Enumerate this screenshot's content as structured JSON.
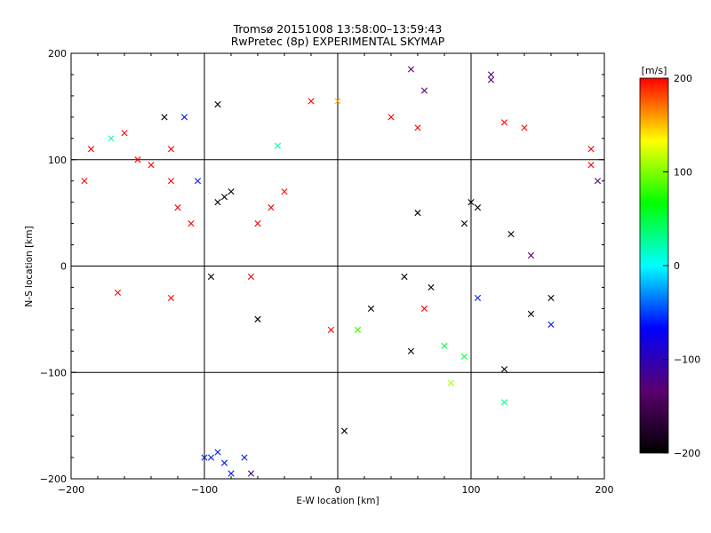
{
  "chart_data": {
    "type": "scatter",
    "title": "Tromsø 20151008 13:58:00–13:59:43",
    "subtitle": "RwPretec (8p) EXPERIMENTAL SKYMAP",
    "xlabel": "E-W location [km]",
    "ylabel": "N-S location [km]",
    "xlim": [
      -200,
      200
    ],
    "ylim": [
      -200,
      200
    ],
    "x_ticks": [
      "−200",
      "−100",
      "0",
      "100",
      "200"
    ],
    "y_ticks": [
      "−200",
      "−100",
      "0",
      "100",
      "200"
    ],
    "grid": "lines at -100, 0, 100 on both axes",
    "colorbar": {
      "label": "[m/s]",
      "range": [
        -200,
        200
      ],
      "ticks": [
        "200",
        "100",
        "0",
        "−100",
        "−200"
      ],
      "colormap": [
        "#000000",
        "#5a006e",
        "#0000ff",
        "#00ffff",
        "#00ff00",
        "#ffff00",
        "#ff0000"
      ]
    },
    "markers": {
      "small": "dot",
      "large": "x"
    },
    "series": [
      {
        "values": [
          {
            "x": -80,
            "y": 70,
            "v": -200,
            "m": "x"
          },
          {
            "x": -85,
            "y": 65,
            "v": -200,
            "m": "x"
          },
          {
            "x": -90,
            "y": 60,
            "v": -200,
            "m": "x"
          },
          {
            "x": -130,
            "y": 140,
            "v": -200,
            "m": "x"
          },
          {
            "x": -90,
            "y": 152,
            "v": -200,
            "m": "x"
          },
          {
            "x": 5,
            "y": -155,
            "v": -200,
            "m": "x"
          },
          {
            "x": 100,
            "y": 60,
            "v": -200,
            "m": "x"
          },
          {
            "x": 105,
            "y": 55,
            "v": -200,
            "m": "x"
          },
          {
            "x": 95,
            "y": 40,
            "v": -200,
            "m": "x"
          },
          {
            "x": 70,
            "y": -20,
            "v": -200,
            "m": "x"
          },
          {
            "x": 50,
            "y": -10,
            "v": -200,
            "m": "x"
          },
          {
            "x": 25,
            "y": -40,
            "v": -200,
            "m": "x"
          },
          {
            "x": 55,
            "y": -80,
            "v": -200,
            "m": "x"
          },
          {
            "x": 125,
            "y": -97,
            "v": -200,
            "m": "x"
          },
          {
            "x": 145,
            "y": -45,
            "v": -200,
            "m": "x"
          },
          {
            "x": -60,
            "y": -50,
            "v": -200,
            "m": "x"
          },
          {
            "x": -95,
            "y": -10,
            "v": -200,
            "m": "x"
          },
          {
            "x": 160,
            "y": -30,
            "v": -200,
            "m": "x"
          },
          {
            "x": 130,
            "y": 30,
            "v": -200,
            "m": "x"
          },
          {
            "x": 60,
            "y": 50,
            "v": -200,
            "m": "x"
          },
          {
            "x": 115,
            "y": 175,
            "v": -130,
            "m": "x"
          },
          {
            "x": 115,
            "y": 180,
            "v": -130,
            "m": "x"
          },
          {
            "x": 195,
            "y": 80,
            "v": -130,
            "m": "x"
          },
          {
            "x": 55,
            "y": 185,
            "v": -130,
            "m": "x"
          },
          {
            "x": 65,
            "y": 165,
            "v": -130,
            "m": "x"
          },
          {
            "x": 145,
            "y": 10,
            "v": -130,
            "m": "x"
          },
          {
            "x": -65,
            "y": -195,
            "v": -120,
            "m": "x"
          },
          {
            "x": -115,
            "y": 140,
            "v": -60,
            "m": "x"
          },
          {
            "x": -85,
            "y": -185,
            "v": -60,
            "m": "x"
          },
          {
            "x": -80,
            "y": -195,
            "v": -60,
            "m": "x"
          },
          {
            "x": -90,
            "y": -175,
            "v": -60,
            "m": "x"
          },
          {
            "x": -95,
            "y": -180,
            "v": -60,
            "m": "x"
          },
          {
            "x": -100,
            "y": -180,
            "v": -60,
            "m": "x"
          },
          {
            "x": -70,
            "y": -180,
            "v": -60,
            "m": "x"
          },
          {
            "x": 160,
            "y": -55,
            "v": -60,
            "m": "x"
          },
          {
            "x": 105,
            "y": -30,
            "v": -60,
            "m": "x"
          },
          {
            "x": -105,
            "y": 80,
            "v": -60,
            "m": "x"
          },
          {
            "x": -170,
            "y": 120,
            "v": 20,
            "m": "x"
          },
          {
            "x": -45,
            "y": 113,
            "v": 20,
            "m": "x"
          },
          {
            "x": 125,
            "y": -128,
            "v": 30,
            "m": "x"
          },
          {
            "x": 80,
            "y": -75,
            "v": 50,
            "m": "x"
          },
          {
            "x": 95,
            "y": -85,
            "v": 50,
            "m": "x"
          },
          {
            "x": 15,
            "y": -60,
            "v": 80,
            "m": "x"
          },
          {
            "x": 85,
            "y": -110,
            "v": 110,
            "m": "x"
          },
          {
            "x": 0,
            "y": 155,
            "v": 150,
            "m": "x"
          },
          {
            "x": -185,
            "y": 110,
            "v": 200,
            "m": "x"
          },
          {
            "x": -160,
            "y": 125,
            "v": 200,
            "m": "x"
          },
          {
            "x": -150,
            "y": 100,
            "v": 200,
            "m": "x"
          },
          {
            "x": -140,
            "y": 95,
            "v": 200,
            "m": "x"
          },
          {
            "x": -125,
            "y": 80,
            "v": 200,
            "m": "x"
          },
          {
            "x": -120,
            "y": 55,
            "v": 200,
            "m": "x"
          },
          {
            "x": -110,
            "y": 40,
            "v": 200,
            "m": "x"
          },
          {
            "x": -125,
            "y": 110,
            "v": 200,
            "m": "x"
          },
          {
            "x": -190,
            "y": 80,
            "v": 200,
            "m": "x"
          },
          {
            "x": -125,
            "y": -30,
            "v": 200,
            "m": "x"
          },
          {
            "x": -165,
            "y": -25,
            "v": 200,
            "m": "x"
          },
          {
            "x": -60,
            "y": 40,
            "v": 200,
            "m": "x"
          },
          {
            "x": -40,
            "y": 70,
            "v": 200,
            "m": "x"
          },
          {
            "x": -20,
            "y": 155,
            "v": 200,
            "m": "x"
          },
          {
            "x": 40,
            "y": 140,
            "v": 200,
            "m": "x"
          },
          {
            "x": 60,
            "y": 130,
            "v": 200,
            "m": "x"
          },
          {
            "x": 125,
            "y": 135,
            "v": 200,
            "m": "x"
          },
          {
            "x": 140,
            "y": 130,
            "v": 200,
            "m": "x"
          },
          {
            "x": 190,
            "y": 95,
            "v": 200,
            "m": "x"
          },
          {
            "x": 190,
            "y": 110,
            "v": 200,
            "m": "x"
          },
          {
            "x": -65,
            "y": -10,
            "v": 200,
            "m": "x"
          },
          {
            "x": -5,
            "y": -60,
            "v": 200,
            "m": "x"
          },
          {
            "x": 65,
            "y": -40,
            "v": 200,
            "m": "x"
          },
          {
            "x": -50,
            "y": 55,
            "v": 200,
            "m": "x"
          }
        ]
      }
    ]
  }
}
